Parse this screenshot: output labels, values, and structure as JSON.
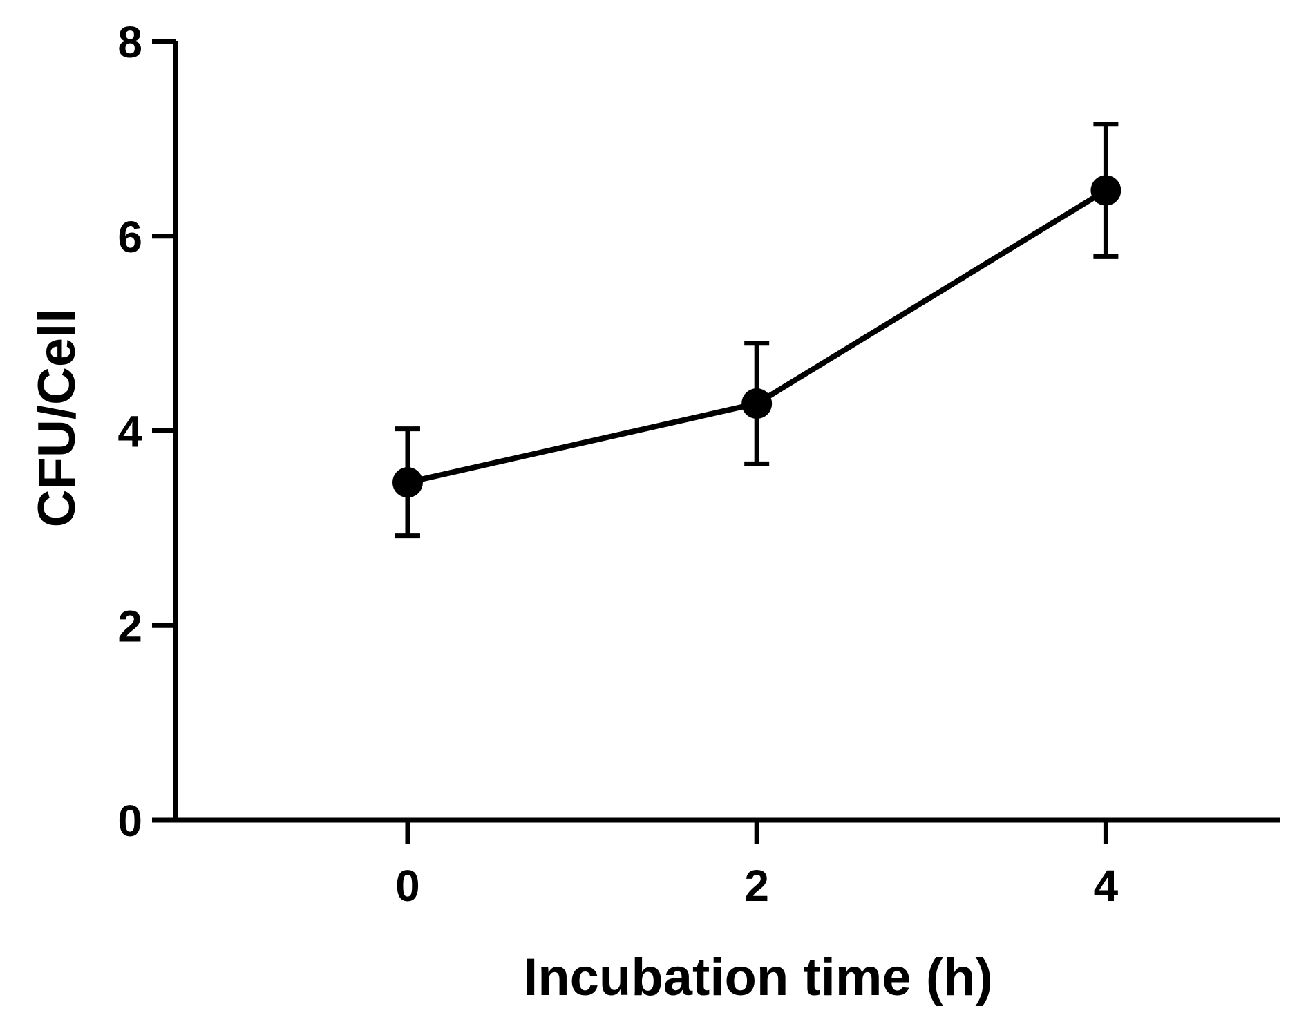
{
  "chart_data": {
    "type": "line",
    "title": "",
    "xlabel": "Incubation time (h)",
    "ylabel": "CFU/Cell",
    "x": [
      0,
      2,
      4
    ],
    "series": [
      {
        "name": "CFU/Cell",
        "values": [
          3.47,
          4.28,
          6.47
        ],
        "error": [
          0.55,
          0.62,
          0.68
        ]
      }
    ],
    "xlim": [
      -1.33,
      5
    ],
    "ylim": [
      0,
      8
    ],
    "xticks": [
      0,
      2,
      4
    ],
    "xtick_labels": [
      "0",
      "2",
      "4"
    ],
    "yticks": [
      0,
      2,
      4,
      6,
      8
    ],
    "ytick_labels": [
      "0",
      "2",
      "4",
      "6",
      "8"
    ],
    "grid": false,
    "legend": "none",
    "colors": {
      "line": "#000000",
      "marker": "#000000",
      "background": "#ffffff"
    }
  }
}
